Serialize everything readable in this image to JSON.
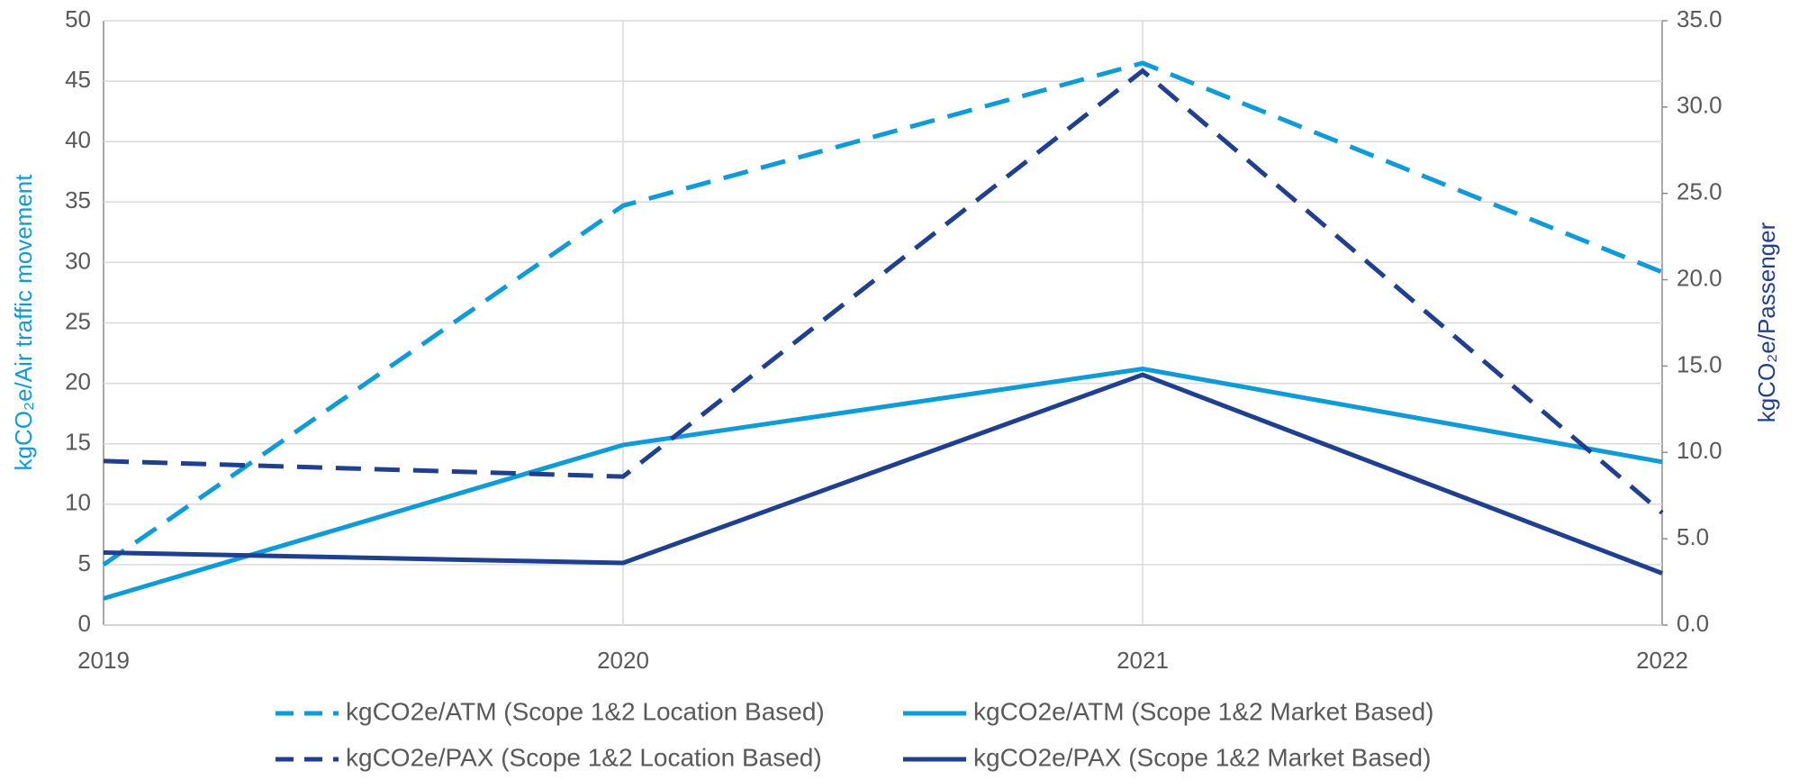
{
  "chart_data": {
    "type": "line",
    "categories": [
      "2019",
      "2020",
      "2021",
      "2022"
    ],
    "y_label": "kgCO₂e/Air traffic movement",
    "y2_label": "kgCO₂e/Passenger",
    "ylim": [
      0,
      50
    ],
    "yticks": [
      0,
      5,
      10,
      15,
      20,
      25,
      30,
      35,
      40,
      45,
      50
    ],
    "y2lim": [
      0,
      35
    ],
    "y2ticks": [
      {
        "value": 0,
        "label": "0.0"
      },
      {
        "value": 5,
        "label": "5.0"
      },
      {
        "value": 10,
        "label": "10.0"
      },
      {
        "value": 15,
        "label": "15.0"
      },
      {
        "value": 20,
        "label": "20.0"
      },
      {
        "value": 25,
        "label": "25.0"
      },
      {
        "value": 30,
        "label": "30.0"
      },
      {
        "value": 35,
        "label": "35.0"
      }
    ],
    "grid": true,
    "legend": "bottom",
    "series": [
      {
        "name": "kgCO2e/ATM (Scope 1&2 Location Based)",
        "color": "#0e9bd8",
        "dashed": true,
        "axis": "y",
        "values": [
          5.0,
          34.7,
          46.5,
          29.2
        ]
      },
      {
        "name": "kgCO2e/ATM (Scope 1&2 Market Based)",
        "color": "#0e9bd8",
        "dashed": false,
        "axis": "y",
        "values": [
          2.2,
          14.9,
          21.2,
          13.5
        ]
      },
      {
        "name": "kgCO2e/PAX (Scope 1&2 Location Based)",
        "color": "#1f3f8f",
        "dashed": true,
        "axis": "y2",
        "values": [
          9.5,
          8.6,
          32.1,
          6.5
        ]
      },
      {
        "name": "kgCO2e/PAX (Scope 1&2 Market Based)",
        "color": "#1f3f8f",
        "dashed": false,
        "axis": "y2",
        "values": [
          4.2,
          3.6,
          14.5,
          3.0
        ]
      }
    ]
  }
}
